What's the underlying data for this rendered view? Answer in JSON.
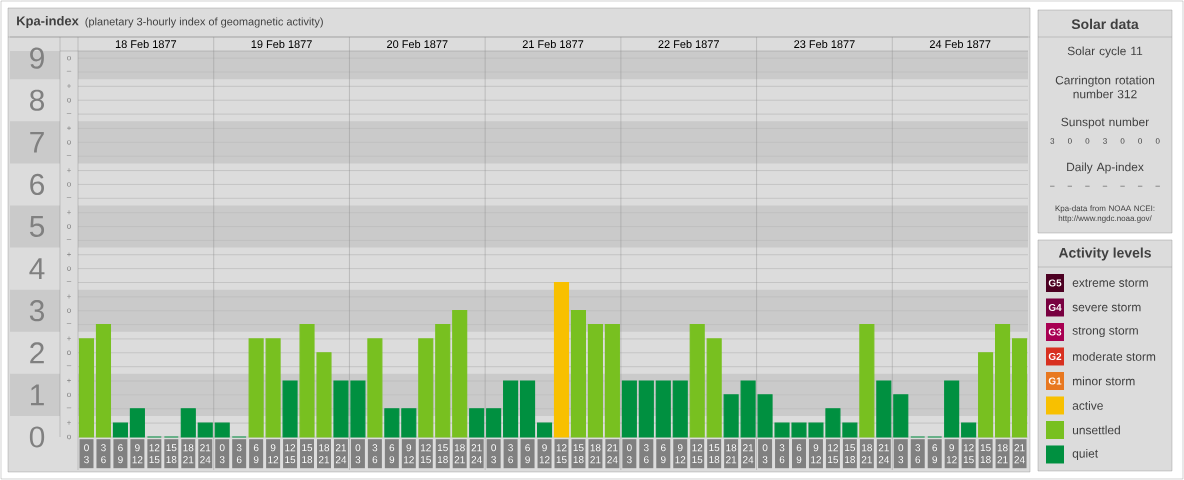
{
  "chart_data": [
    {
      "type": "bar",
      "title": "Kpa-index",
      "subtitle": "(planetary 3-hourly index of geomagnetic activity)",
      "categories": [
        "0 3",
        "3 6",
        "6 9",
        "9 12",
        "12 15",
        "15 18",
        "18 21",
        "21 24",
        "0 3",
        "3 6",
        "6 9",
        "9 12",
        "12 15",
        "15 18",
        "18 21",
        "21 24",
        "0 3",
        "3 6",
        "6 9",
        "9 12",
        "12 15",
        "15 18",
        "18 21",
        "21 24",
        "0 3",
        "3 6",
        "6 9",
        "9 12",
        "12 15",
        "15 18",
        "18 21",
        "21 24",
        "0 3",
        "3 6",
        "6 9",
        "9 12",
        "12 15",
        "15 18",
        "18 21",
        "21 24",
        "0 3",
        "3 6",
        "6 9",
        "9 12",
        "12 15",
        "15 18",
        "18 21",
        "21 24",
        "0 3",
        "3 6",
        "6 9",
        "9 12",
        "12 15",
        "15 18",
        "18 21",
        "21 24"
      ],
      "values": [
        2.33,
        2.67,
        0.33,
        0.67,
        0,
        0,
        0.67,
        0.33,
        0.33,
        0,
        2.33,
        2.33,
        1.33,
        2.67,
        2,
        1.33,
        1.33,
        2.33,
        0.67,
        0.67,
        2.33,
        2.67,
        3,
        0.67,
        0.67,
        1.33,
        1.33,
        0.33,
        3.67,
        3,
        2.67,
        2.67,
        1.33,
        1.33,
        1.33,
        1.33,
        2.67,
        2.33,
        1,
        1.33,
        1,
        0.33,
        0.33,
        0.33,
        0.67,
        0.33,
        2.67,
        1.33,
        1,
        0,
        0,
        1.33,
        0.33,
        2,
        2.67,
        2.33
      ],
      "colors": [
        "#78c020",
        "#78c020",
        "#009040",
        "#009040",
        "#009040",
        "#009040",
        "#009040",
        "#009040",
        "#009040",
        "#009040",
        "#78c020",
        "#78c020",
        "#009040",
        "#78c020",
        "#78c020",
        "#009040",
        "#009040",
        "#78c020",
        "#009040",
        "#009040",
        "#78c020",
        "#78c020",
        "#78c020",
        "#009040",
        "#009040",
        "#009040",
        "#009040",
        "#009040",
        "#f8c000",
        "#78c020",
        "#78c020",
        "#78c020",
        "#009040",
        "#009040",
        "#009040",
        "#009040",
        "#78c020",
        "#78c020",
        "#009040",
        "#009040",
        "#009040",
        "#009040",
        "#009040",
        "#009040",
        "#009040",
        "#009040",
        "#78c020",
        "#009040",
        "#009040",
        "#009040",
        "#009040",
        "#009040",
        "#009040",
        "#78c020",
        "#78c020",
        "#78c020"
      ],
      "ylim": [
        0,
        9.17
      ],
      "yticks": [
        0,
        {
          "value": 0.33,
          "label": null
        },
        {
          "value": 0.67,
          "label": null
        },
        1,
        {
          "value": 1.33,
          "label": null
        },
        {
          "value": 1.67,
          "label": null
        },
        2,
        {
          "value": 2.33,
          "label": null
        },
        {
          "value": 2.67,
          "label": null
        },
        3,
        {
          "value": 3.33,
          "label": null
        },
        {
          "value": 3.67,
          "label": null
        },
        4,
        {
          "value": 4.33,
          "label": null
        },
        {
          "value": 4.67,
          "label": null
        },
        5,
        {
          "value": 5.33,
          "label": null
        },
        {
          "value": 5.67,
          "label": null
        },
        6,
        {
          "value": 6.33,
          "label": null
        },
        {
          "value": 6.67,
          "label": null
        },
        7,
        {
          "value": 7.33,
          "label": null
        },
        {
          "value": 7.67,
          "label": null
        },
        8,
        {
          "value": 8.33,
          "label": null
        },
        {
          "value": 8.67,
          "label": null
        },
        9
      ],
      "grid": "y",
      "bands": [
        {
          "axis": "y",
          "from": 0.5,
          "to": 1.5,
          "color": "#cacaca"
        },
        {
          "axis": "y",
          "from": 2.5,
          "to": 3.5,
          "color": "#cacaca"
        },
        {
          "axis": "y",
          "from": 4.5,
          "to": 5.5,
          "color": "#cacaca"
        },
        {
          "axis": "y",
          "from": 6.5,
          "to": 7.5,
          "color": "#cacaca"
        },
        {
          "axis": "y",
          "from": 8.5,
          "to": 9.17,
          "color": "#cacaca"
        }
      ],
      "annotations": [
        "o",
        "+",
        "–",
        "o",
        "+",
        "–",
        "o",
        "+",
        "–",
        "o",
        "+",
        "–",
        "o",
        "+",
        "–",
        "o",
        "+",
        "–",
        "o",
        "+",
        "–",
        "o",
        "+",
        "–",
        "o",
        "+",
        "–",
        "o",
        "18 Feb 1877",
        "19 Feb 1877",
        "20 Feb 1877",
        "21 Feb 1877",
        "22 Feb 1877",
        "23 Feb 1877",
        "24 Feb 1877"
      ]
    },
    {
      "type": "other",
      "title": "Solar data",
      "annotations": [
        "Solar cycle 11",
        "Carrington rotation number 312",
        "Sunspot number",
        "3 0 0 3 0 0 0",
        "Daily Ap-index",
        "– – – – – – –",
        "Kpa-data from NOAA NCEI: http://www.ngdc.noaa.gov/"
      ]
    },
    {
      "type": "other",
      "title": "Activity levels",
      "categories": [
        "extreme storm",
        "severe storm",
        "strong storm",
        "moderate storm",
        "minor storm",
        "active",
        "unsettled",
        "quiet"
      ],
      "colors": [
        "#4c0022",
        "#780040",
        "#a80052",
        "#d83020",
        "#e87820",
        "#f8c000",
        "#78c020",
        "#009040"
      ],
      "value_labels": [
        "G5",
        "G4",
        "G3",
        "G2",
        "G1",
        null,
        null,
        null
      ]
    }
  ]
}
